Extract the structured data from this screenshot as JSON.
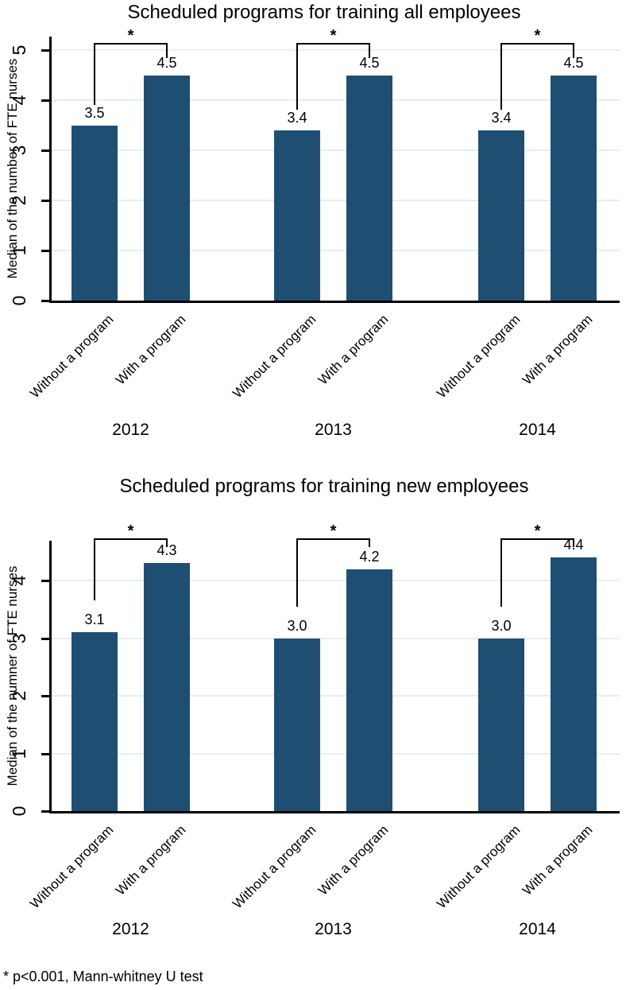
{
  "figure": {
    "footnote": "* p<0.001, Mann-whitney U test",
    "background_color": "#ffffff",
    "bar_color": "#1f4e73",
    "grid_color": "#e7edf2",
    "axis_color": "#000000"
  },
  "chart_data": [
    {
      "type": "bar",
      "title": "Scheduled programs for training all employees",
      "ylabel": "Median of the number of FTE nurses",
      "xlabel": "",
      "categories": [
        "Without a program",
        "With a program"
      ],
      "groups": [
        {
          "label": "2012",
          "values": [
            3.5,
            4.5
          ],
          "significance": "*"
        },
        {
          "label": "2013",
          "values": [
            3.4,
            4.5
          ],
          "significance": "*"
        },
        {
          "label": "2014",
          "values": [
            3.4,
            4.5
          ],
          "significance": "*"
        }
      ],
      "yticks": [
        0,
        1,
        2,
        3,
        4,
        5
      ],
      "ylim": [
        0,
        5.3
      ],
      "grid": true,
      "legend": "none"
    },
    {
      "type": "bar",
      "title": "Scheduled programs for training new employees",
      "ylabel": "Median of the numner of FTE nurses",
      "xlabel": "",
      "categories": [
        "Without a program",
        "With a program"
      ],
      "groups": [
        {
          "label": "2012",
          "values": [
            3.1,
            4.3
          ],
          "significance": "*"
        },
        {
          "label": "2013",
          "values": [
            3.0,
            4.2
          ],
          "significance": "*"
        },
        {
          "label": "2014",
          "values": [
            3.0,
            4.4
          ],
          "significance": "*"
        }
      ],
      "yticks": [
        0,
        1,
        2,
        3,
        4
      ],
      "ylim": [
        0,
        4.7
      ],
      "grid": true,
      "legend": "none"
    }
  ]
}
